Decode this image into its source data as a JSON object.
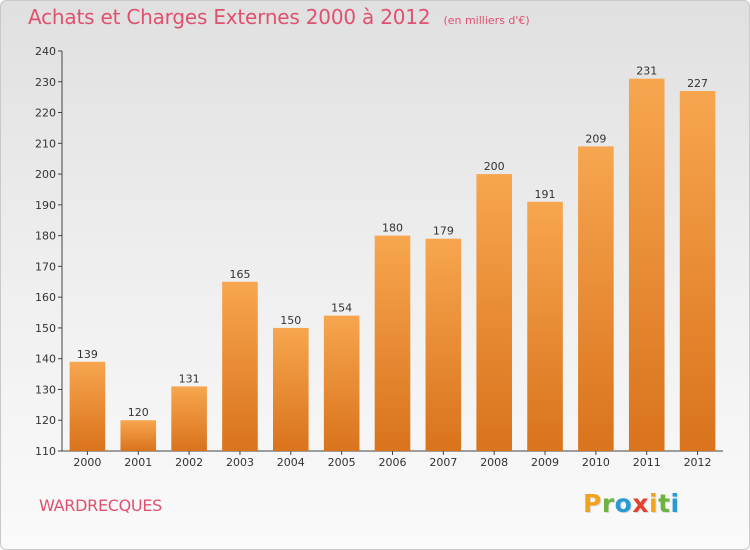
{
  "header": {
    "title": "Achats et Charges Externes 2000 à 2012",
    "unit": "(en milliers d'€)"
  },
  "commune": "WARDRECQUES",
  "brand": {
    "letters": [
      "P",
      "r",
      "o",
      "x",
      "i",
      "t",
      "i"
    ],
    "colors": [
      "#f2a21d",
      "#6cb33f",
      "#2a9ad6",
      "#e5412f",
      "#f2a21d",
      "#6cb33f",
      "#2a9ad6"
    ]
  },
  "colors": {
    "bar_top": "#f7a64f",
    "bar_bottom": "#d9731c",
    "title": "#e0506f"
  },
  "chart_data": {
    "type": "bar",
    "categories": [
      "2000",
      "2001",
      "2002",
      "2003",
      "2004",
      "2005",
      "2006",
      "2007",
      "2008",
      "2009",
      "2010",
      "2011",
      "2012"
    ],
    "values": [
      139,
      120,
      131,
      165,
      150,
      154,
      180,
      179,
      200,
      191,
      209,
      231,
      227
    ],
    "ylim": [
      110,
      240
    ],
    "yticks": [
      110,
      120,
      130,
      140,
      150,
      160,
      170,
      180,
      190,
      200,
      210,
      220,
      230,
      240
    ],
    "title": "Achats et Charges Externes 2000 à 2012",
    "xlabel": "",
    "ylabel": "",
    "grid": false,
    "legend": "none"
  }
}
